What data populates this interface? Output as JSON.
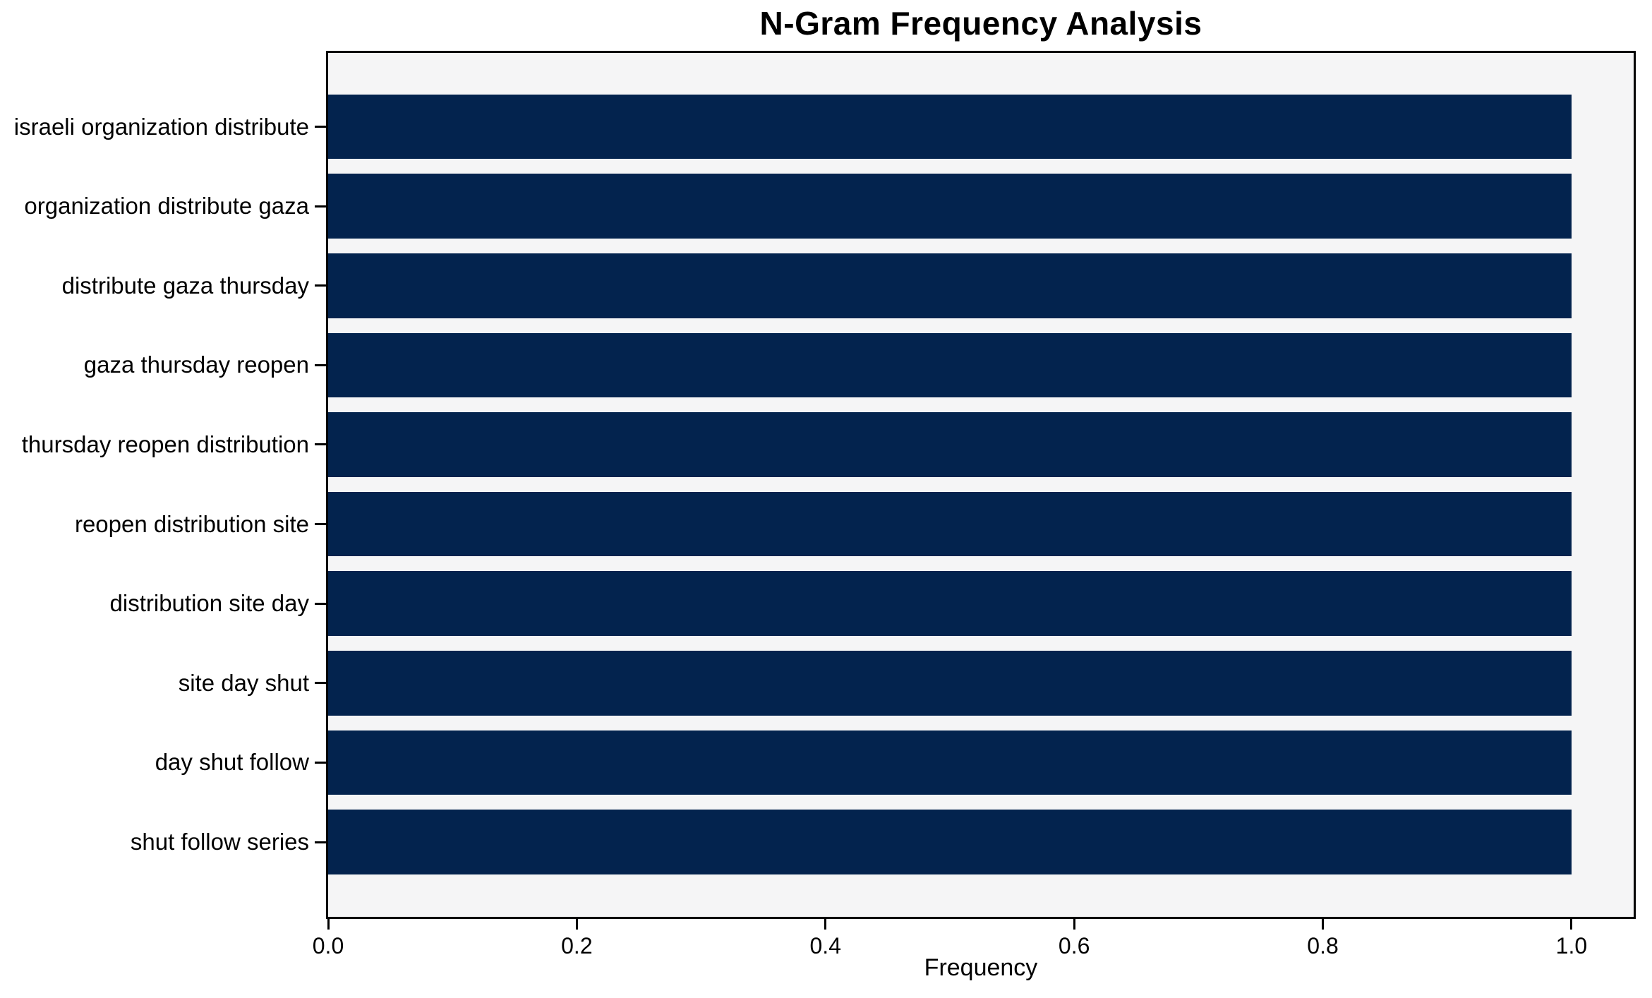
{
  "chart_data": {
    "type": "bar",
    "orientation": "horizontal",
    "title": "N-Gram Frequency Analysis",
    "xlabel": "Frequency",
    "ylabel": "",
    "categories": [
      "israeli organization distribute",
      "organization distribute gaza",
      "distribute gaza thursday",
      "gaza thursday reopen",
      "thursday reopen distribution",
      "reopen distribution site",
      "distribution site day",
      "site day shut",
      "day shut follow",
      "shut follow series"
    ],
    "values": [
      1.0,
      1.0,
      1.0,
      1.0,
      1.0,
      1.0,
      1.0,
      1.0,
      1.0,
      1.0
    ],
    "xlim": [
      0,
      1.05
    ],
    "xtick_values": [
      0.0,
      0.2,
      0.4,
      0.6,
      0.8,
      1.0
    ],
    "xtick_labels": [
      "0.0",
      "0.2",
      "0.4",
      "0.6",
      "0.8",
      "1.0"
    ],
    "grid": false,
    "legend_position": "none",
    "colors": {
      "bar": "#03234e",
      "plot_background": "#f5f5f6",
      "figure_background": "#ffffff",
      "axis": "#000000",
      "text": "#000000"
    }
  }
}
